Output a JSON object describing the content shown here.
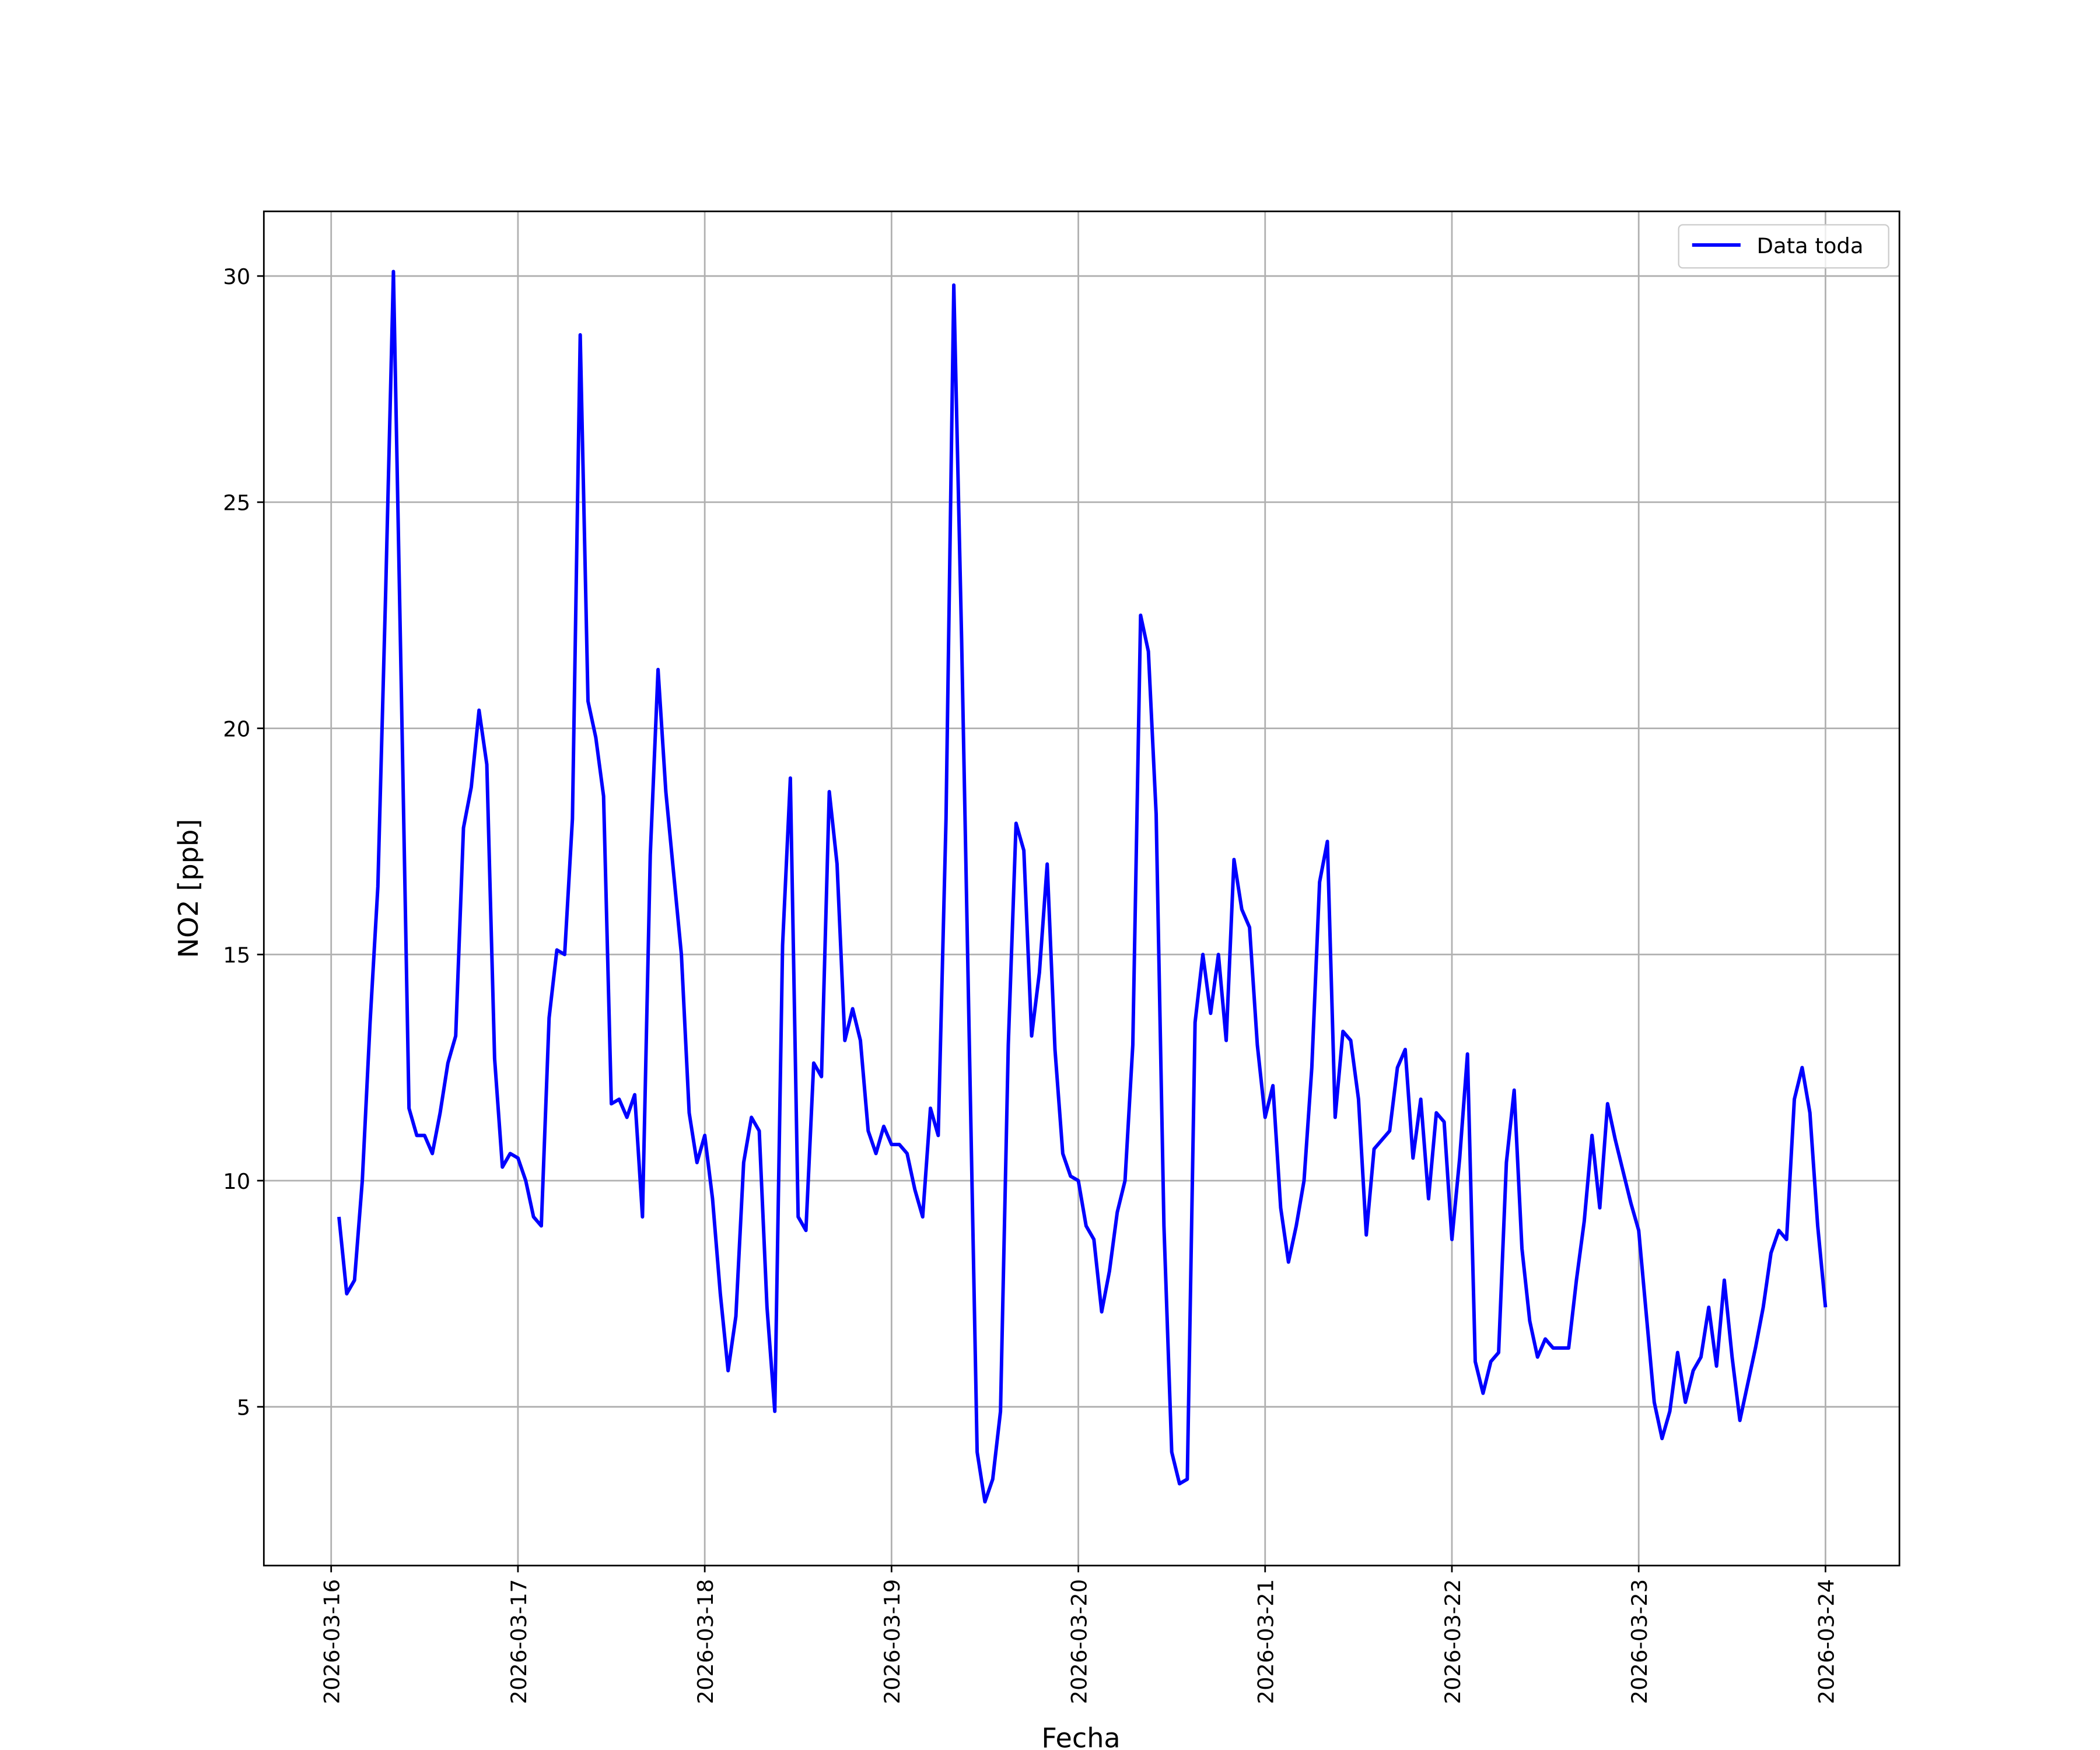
{
  "chart_data": {
    "type": "line",
    "xlabel": "Fecha",
    "ylabel": "NO2 [ppb]",
    "x": [
      "2026-03-16 01:00",
      "2026-03-16 02:00",
      "2026-03-16 03:00",
      "2026-03-16 04:00",
      "2026-03-16 05:00",
      "2026-03-16 06:00",
      "2026-03-16 07:00",
      "2026-03-16 08:00",
      "2026-03-16 09:00",
      "2026-03-16 10:00",
      "2026-03-16 11:00",
      "2026-03-16 12:00",
      "2026-03-16 13:00",
      "2026-03-16 14:00",
      "2026-03-16 15:00",
      "2026-03-16 16:00",
      "2026-03-16 17:00",
      "2026-03-16 18:00",
      "2026-03-16 19:00",
      "2026-03-16 20:00",
      "2026-03-16 21:00",
      "2026-03-16 22:00",
      "2026-03-16 23:00",
      "2026-03-17 00:00",
      "2026-03-17 01:00",
      "2026-03-17 02:00",
      "2026-03-17 03:00",
      "2026-03-17 04:00",
      "2026-03-17 05:00",
      "2026-03-17 06:00",
      "2026-03-17 07:00",
      "2026-03-17 08:00",
      "2026-03-17 09:00",
      "2026-03-17 10:00",
      "2026-03-17 11:00",
      "2026-03-17 12:00",
      "2026-03-17 13:00",
      "2026-03-17 14:00",
      "2026-03-17 15:00",
      "2026-03-17 16:00",
      "2026-03-17 17:00",
      "2026-03-17 18:00",
      "2026-03-17 19:00",
      "2026-03-17 20:00",
      "2026-03-17 21:00",
      "2026-03-17 22:00",
      "2026-03-17 23:00",
      "2026-03-18 00:00",
      "2026-03-18 01:00",
      "2026-03-18 02:00",
      "2026-03-18 03:00",
      "2026-03-18 04:00",
      "2026-03-18 05:00",
      "2026-03-18 06:00",
      "2026-03-18 07:00",
      "2026-03-18 08:00",
      "2026-03-18 09:00",
      "2026-03-18 10:00",
      "2026-03-18 11:00",
      "2026-03-18 12:00",
      "2026-03-18 13:00",
      "2026-03-18 14:00",
      "2026-03-18 15:00",
      "2026-03-18 16:00",
      "2026-03-18 17:00",
      "2026-03-18 18:00",
      "2026-03-18 19:00",
      "2026-03-18 20:00",
      "2026-03-18 21:00",
      "2026-03-18 22:00",
      "2026-03-18 23:00",
      "2026-03-19 00:00",
      "2026-03-19 01:00",
      "2026-03-19 02:00",
      "2026-03-19 03:00",
      "2026-03-19 04:00",
      "2026-03-19 05:00",
      "2026-03-19 06:00",
      "2026-03-19 07:00",
      "2026-03-19 08:00",
      "2026-03-19 09:00",
      "2026-03-19 10:00",
      "2026-03-19 11:00",
      "2026-03-19 12:00",
      "2026-03-19 13:00",
      "2026-03-19 14:00",
      "2026-03-19 15:00",
      "2026-03-19 16:00",
      "2026-03-19 17:00",
      "2026-03-19 18:00",
      "2026-03-19 19:00",
      "2026-03-19 20:00",
      "2026-03-19 21:00",
      "2026-03-19 22:00",
      "2026-03-19 23:00",
      "2026-03-20 00:00",
      "2026-03-20 01:00",
      "2026-03-20 02:00",
      "2026-03-20 03:00",
      "2026-03-20 04:00",
      "2026-03-20 05:00",
      "2026-03-20 06:00",
      "2026-03-20 07:00",
      "2026-03-20 08:00",
      "2026-03-20 09:00",
      "2026-03-20 10:00",
      "2026-03-20 11:00",
      "2026-03-20 12:00",
      "2026-03-20 13:00",
      "2026-03-20 14:00",
      "2026-03-20 15:00",
      "2026-03-20 16:00",
      "2026-03-20 17:00",
      "2026-03-20 18:00",
      "2026-03-20 19:00",
      "2026-03-20 20:00",
      "2026-03-20 21:00",
      "2026-03-20 22:00",
      "2026-03-20 23:00",
      "2026-03-21 00:00",
      "2026-03-21 01:00",
      "2026-03-21 02:00",
      "2026-03-21 03:00",
      "2026-03-21 04:00",
      "2026-03-21 05:00",
      "2026-03-21 06:00",
      "2026-03-21 07:00",
      "2026-03-21 08:00",
      "2026-03-21 09:00",
      "2026-03-21 10:00",
      "2026-03-21 11:00",
      "2026-03-21 12:00",
      "2026-03-21 13:00",
      "2026-03-21 14:00",
      "2026-03-21 15:00",
      "2026-03-21 16:00",
      "2026-03-21 17:00",
      "2026-03-21 18:00",
      "2026-03-21 19:00",
      "2026-03-21 20:00",
      "2026-03-21 21:00",
      "2026-03-21 22:00",
      "2026-03-21 23:00",
      "2026-03-22 00:00",
      "2026-03-22 01:00",
      "2026-03-22 02:00",
      "2026-03-22 03:00",
      "2026-03-22 04:00",
      "2026-03-22 05:00",
      "2026-03-22 06:00",
      "2026-03-22 07:00",
      "2026-03-22 08:00",
      "2026-03-22 09:00",
      "2026-03-22 10:00",
      "2026-03-22 11:00",
      "2026-03-22 12:00",
      "2026-03-22 13:00",
      "2026-03-22 14:00",
      "2026-03-22 15:00",
      "2026-03-22 16:00",
      "2026-03-22 17:00",
      "2026-03-22 18:00",
      "2026-03-22 19:00",
      "2026-03-22 20:00",
      "2026-03-22 21:00",
      "2026-03-22 22:00",
      "2026-03-22 23:00",
      "2026-03-23 00:00",
      "2026-03-23 01:00",
      "2026-03-23 02:00",
      "2026-03-23 03:00",
      "2026-03-23 04:00",
      "2026-03-23 05:00",
      "2026-03-23 06:00",
      "2026-03-23 07:00",
      "2026-03-23 08:00",
      "2026-03-23 09:00",
      "2026-03-23 10:00",
      "2026-03-23 11:00",
      "2026-03-23 12:00",
      "2026-03-23 13:00",
      "2026-03-23 14:00",
      "2026-03-23 15:00",
      "2026-03-23 16:00",
      "2026-03-23 17:00",
      "2026-03-23 18:00",
      "2026-03-23 19:00",
      "2026-03-23 20:00",
      "2026-03-23 21:00",
      "2026-03-23 22:00",
      "2026-03-23 23:00",
      "2026-03-24 00:00"
    ],
    "series": [
      {
        "name": "Data toda",
        "color": "#0000ff",
        "values": [
          9.2,
          7.5,
          7.8,
          10,
          13.5,
          16.5,
          23,
          30.1,
          21,
          11.6,
          11.0,
          11.0,
          10.6,
          11.5,
          12.6,
          13.2,
          17.8,
          18.7,
          20.4,
          19.2,
          12.7,
          10.3,
          10.6,
          10.5,
          10,
          9.2,
          9.0,
          13.6,
          15.1,
          15.0,
          18.0,
          28.7,
          20.6,
          19.8,
          18.5,
          11.7,
          11.8,
          11.4,
          11.9,
          9.2,
          17.2,
          21.3,
          18.6,
          16.8,
          15.0,
          11.5,
          10.4,
          11.0,
          9.6,
          7.5,
          5.8,
          7.0,
          10.4,
          11.4,
          11.1,
          7.2,
          4.9,
          15.2,
          18.9,
          9.2,
          8.9,
          12.6,
          12.3,
          18.6,
          17.0,
          13.1,
          13.8,
          13.1,
          11.1,
          10.6,
          11.2,
          10.8,
          10.8,
          10.6,
          9.8,
          9.2,
          11.6,
          11.0,
          18.0,
          29.8,
          22.0,
          13.0,
          4.0,
          2.9,
          3.4,
          4.9,
          13.0,
          17.9,
          17.3,
          13.2,
          14.6,
          17.0,
          12.9,
          10.6,
          10.1,
          10.0,
          9.0,
          8.7,
          7.1,
          8.0,
          9.3,
          10.0,
          13.0,
          22.5,
          21.7,
          18.1,
          9.0,
          4.0,
          3.3,
          3.4,
          13.5,
          15.0,
          13.7,
          15.0,
          13.1,
          17.1,
          16.0,
          15.6,
          13.0,
          11.4,
          12.1,
          9.4,
          8.2,
          9.0,
          10.0,
          12.5,
          16.6,
          17.5,
          11.4,
          13.3,
          13.1,
          11.8,
          8.8,
          10.7,
          10.9,
          11.1,
          12.5,
          12.9,
          10.5,
          11.8,
          9.6,
          11.5,
          11.3,
          8.7,
          10.5,
          12.8,
          6.0,
          5.3,
          6.0,
          6.2,
          10.4,
          12.0,
          8.5,
          6.9,
          6.1,
          6.5,
          6.3,
          6.3,
          6.3,
          7.8,
          9.1,
          11.0,
          9.4,
          11.7,
          10.9,
          10.2,
          9.5,
          8.9,
          7.0,
          5.1,
          4.3,
          4.9,
          6.2,
          5.1,
          5.8,
          6.1,
          7.2,
          5.9,
          7.8,
          6.1,
          4.7,
          5.5,
          6.3,
          7.2,
          8.4,
          8.9,
          8.7,
          11.8,
          12.5,
          11.5,
          9.0,
          7.2
        ]
      }
    ],
    "xlim": [
      "2026-03-15 15:21",
      "2026-03-24 09:30"
    ],
    "xticks": [
      "2026-03-16",
      "2026-03-17",
      "2026-03-18",
      "2026-03-19",
      "2026-03-20",
      "2026-03-21",
      "2026-03-22",
      "2026-03-23",
      "2026-03-24"
    ],
    "ylim": [
      1.49,
      31.43
    ],
    "yticks": [
      5,
      10,
      15,
      20,
      25,
      30
    ],
    "grid": true,
    "legend": "upper right"
  }
}
